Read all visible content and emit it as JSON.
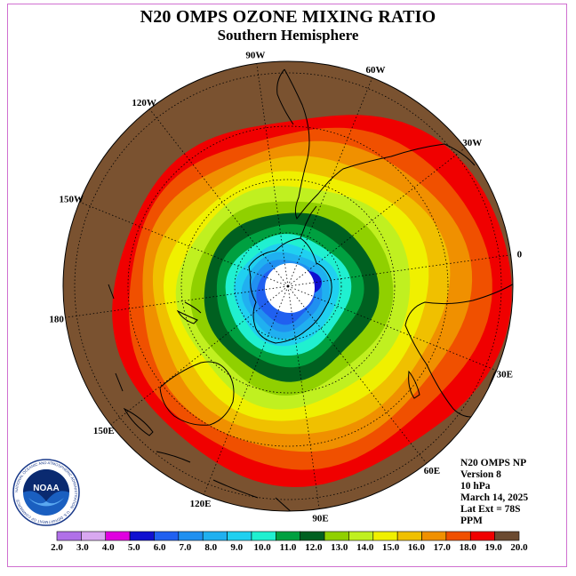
{
  "title": "N20 OMPS OZONE MIXING RATIO",
  "subtitle": "Southern Hemisphere",
  "longitude_labels": [
    {
      "text": "90W",
      "lon": -90
    },
    {
      "text": "60W",
      "lon": -60
    },
    {
      "text": "30W",
      "lon": -30
    },
    {
      "text": "0",
      "lon": 0
    },
    {
      "text": "30E",
      "lon": 30
    },
    {
      "text": "60E",
      "lon": 60
    },
    {
      "text": "90E",
      "lon": 90
    },
    {
      "text": "120E",
      "lon": 120
    },
    {
      "text": "150E",
      "lon": 150
    },
    {
      "text": "180",
      "lon": 180
    },
    {
      "text": "150W",
      "lon": -150
    },
    {
      "text": "120W",
      "lon": -120
    }
  ],
  "info": {
    "product": "N20 OMPS NP",
    "version": "Version 8",
    "level": "10 hPa",
    "date": "March 14, 2025",
    "lat_ext": "Lat Ext = 78S",
    "units": "PPM"
  },
  "colorbar": {
    "labels": [
      "2.0",
      "3.0",
      "4.0",
      "5.0",
      "6.0",
      "7.0",
      "8.0",
      "9.0",
      "10.0",
      "11.0",
      "12.0",
      "13.0",
      "14.0",
      "15.0",
      "16.0",
      "17.0",
      "18.0",
      "19.0",
      "20.0"
    ],
    "colors": [
      "#b070e8",
      "#d8a8f0",
      "#e000e0",
      "#1010d0",
      "#2060f0",
      "#2090f0",
      "#20b0f0",
      "#20d0f0",
      "#20f0d0",
      "#00a040",
      "#006020",
      "#90d000",
      "#c0f020",
      "#f0f000",
      "#f0c000",
      "#f09000",
      "#f05000",
      "#f00000",
      "#6b4a30"
    ]
  },
  "logo": {
    "text": "NOAA",
    "ring_text": "NATIONAL OCEANIC AND ATMOSPHERIC ADMINISTRATION · U.S. DEPARTMENT OF COMMERCE"
  },
  "colors": {
    "outer": "#7a5230",
    "frame": "#d070d0"
  }
}
